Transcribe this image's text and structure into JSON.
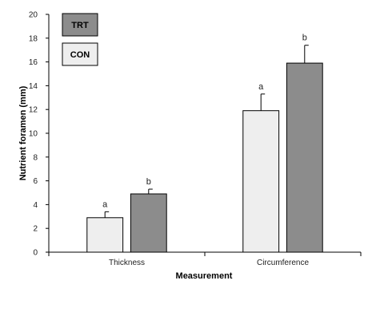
{
  "chart_data": {
    "type": "bar",
    "title": "",
    "xlabel": "Measurement",
    "ylabel": "Nutrient foramen (mm)",
    "categories": [
      "Thickness",
      "Circumference"
    ],
    "ylim": [
      0,
      20
    ],
    "yticks": [
      0,
      2,
      4,
      6,
      8,
      10,
      12,
      14,
      16,
      18,
      20
    ],
    "grid": false,
    "legend_position": "top-left",
    "series": [
      {
        "name": "CON",
        "color": "#eeeeee",
        "values": [
          2.9,
          11.9
        ],
        "errors": [
          0.5,
          1.4
        ],
        "significance": [
          "a",
          "a"
        ]
      },
      {
        "name": "TRT",
        "color": "#8c8c8c",
        "values": [
          4.9,
          15.9
        ],
        "errors": [
          0.4,
          1.5
        ],
        "significance": [
          "b",
          "b"
        ]
      }
    ],
    "legend_order": [
      "TRT",
      "CON"
    ]
  }
}
